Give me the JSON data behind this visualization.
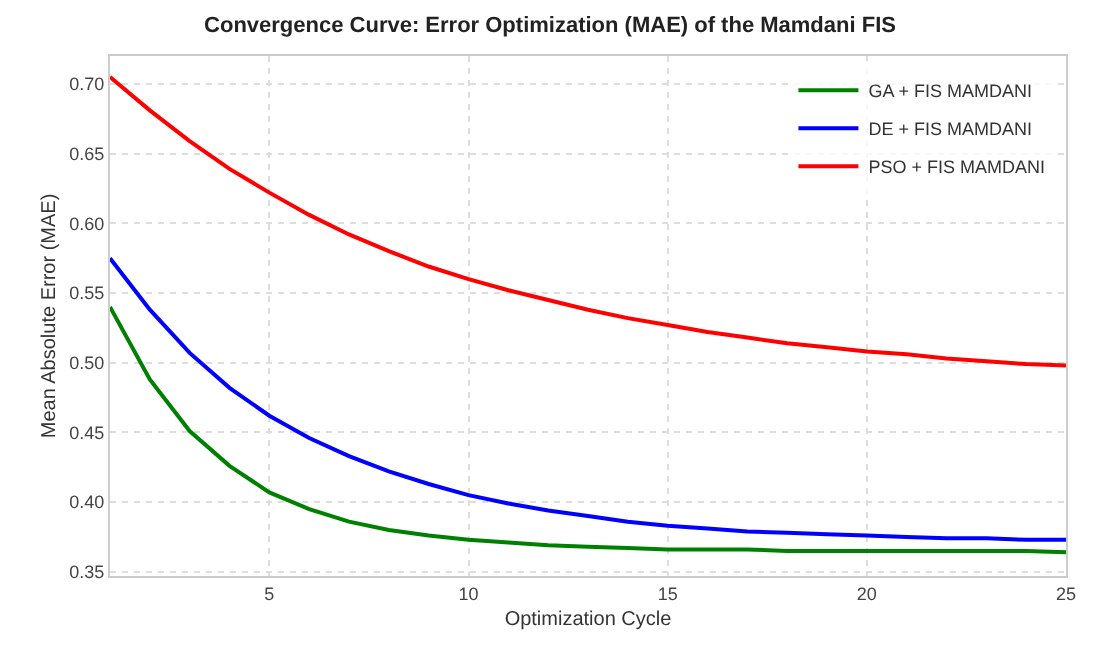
{
  "chart_data": {
    "type": "line",
    "title": "Convergence Curve: Error Optimization (MAE) of the Mamdani FIS",
    "xlabel": "Optimization Cycle",
    "ylabel": "Mean Absolute Error (MAE)",
    "x": [
      1,
      2,
      3,
      4,
      5,
      6,
      7,
      8,
      9,
      10,
      11,
      12,
      13,
      14,
      15,
      16,
      17,
      18,
      19,
      20,
      21,
      22,
      23,
      24,
      25
    ],
    "series": [
      {
        "name": "GA + FIS MAMDANI",
        "color": "#008000",
        "values": [
          0.54,
          0.488,
          0.451,
          0.426,
          0.407,
          0.395,
          0.386,
          0.38,
          0.376,
          0.373,
          0.371,
          0.369,
          0.368,
          0.367,
          0.366,
          0.366,
          0.366,
          0.365,
          0.365,
          0.365,
          0.365,
          0.365,
          0.365,
          0.365,
          0.364
        ]
      },
      {
        "name": "DE + FIS MAMDANI",
        "color": "#0000ff",
        "values": [
          0.575,
          0.538,
          0.507,
          0.482,
          0.462,
          0.446,
          0.433,
          0.422,
          0.413,
          0.405,
          0.399,
          0.394,
          0.39,
          0.386,
          0.383,
          0.381,
          0.379,
          0.378,
          0.377,
          0.376,
          0.375,
          0.374,
          0.374,
          0.373,
          0.373
        ]
      },
      {
        "name": "PSO + FIS MAMDANI",
        "color": "#ff0000",
        "values": [
          0.705,
          0.681,
          0.659,
          0.639,
          0.622,
          0.606,
          0.592,
          0.58,
          0.569,
          0.56,
          0.552,
          0.545,
          0.538,
          0.532,
          0.527,
          0.522,
          0.518,
          0.514,
          0.511,
          0.508,
          0.506,
          0.503,
          0.501,
          0.499,
          0.498
        ]
      }
    ],
    "xlim": [
      1,
      25
    ],
    "xticks": [
      5,
      10,
      15,
      20,
      25
    ],
    "ylim": [
      0.347,
      0.72
    ],
    "yticks": [
      {
        "value": 0.35,
        "label": "0.35"
      },
      {
        "value": 0.4,
        "label": "0.40"
      },
      {
        "value": 0.45,
        "label": "0.45"
      },
      {
        "value": 0.5,
        "label": "0.50"
      },
      {
        "value": 0.55,
        "label": "0.55"
      },
      {
        "value": 0.6,
        "label": "0.60"
      },
      {
        "value": 0.65,
        "label": "0.65"
      },
      {
        "value": 0.7,
        "label": "0.70"
      }
    ],
    "grid": true,
    "legend": "top right",
    "marker": "none",
    "line_style": "solid"
  }
}
